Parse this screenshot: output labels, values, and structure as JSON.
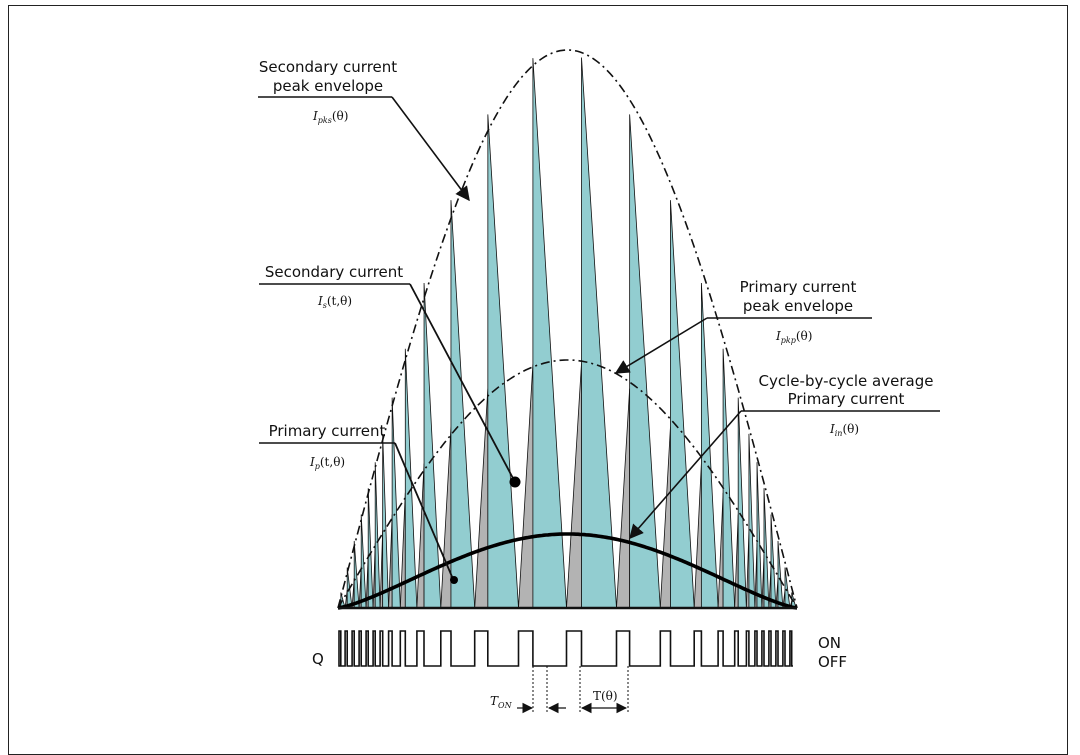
{
  "labels": {
    "sec_env_line1": "Secondary current",
    "sec_env_line2": "peak envelope",
    "sec_env_sym": "I",
    "sec_env_sub": "pks",
    "sec_env_arg": "(θ)",
    "sec_cur_line1": "Secondary current",
    "sec_cur_sym": "I",
    "sec_cur_sub": "s",
    "sec_cur_arg": "(t,θ)",
    "pri_env_line1": "Primary current",
    "pri_env_line2": "peak envelope",
    "pri_env_sym": "I",
    "pri_env_sub": "pkp",
    "pri_env_arg": "(θ)",
    "avg_line1": "Cycle-by-cycle average",
    "avg_line2": "Primary current",
    "avg_sym": "I",
    "avg_sub": "in",
    "avg_arg": "(θ)",
    "pri_cur_line1": "Primary current",
    "pri_cur_sym": "I",
    "pri_cur_sub": "p",
    "pri_cur_arg": "(t,θ)"
  },
  "gate": {
    "signal": "Q",
    "on": "ON",
    "off": "OFF",
    "ton_sym": "T",
    "ton_sub": "ON",
    "period": "T(θ)"
  },
  "colors": {
    "secondary_fill": "#92cdd0",
    "primary_fill": "#b3b3b3",
    "stroke": "#111111"
  },
  "icons": {
    "arrowhead": "filled-triangle-arrowhead",
    "dot": "filled-circle-marker"
  }
}
